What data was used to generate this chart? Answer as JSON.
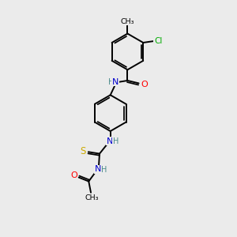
{
  "background_color": "#ebebeb",
  "bond_color": "#000000",
  "atom_colors": {
    "N": "#0000cd",
    "O": "#ff0000",
    "S": "#ccaa00",
    "Cl": "#00aa00",
    "C": "#000000",
    "H": "#4a8a8a"
  },
  "figsize": [
    3.0,
    3.0
  ],
  "dpi": 100
}
